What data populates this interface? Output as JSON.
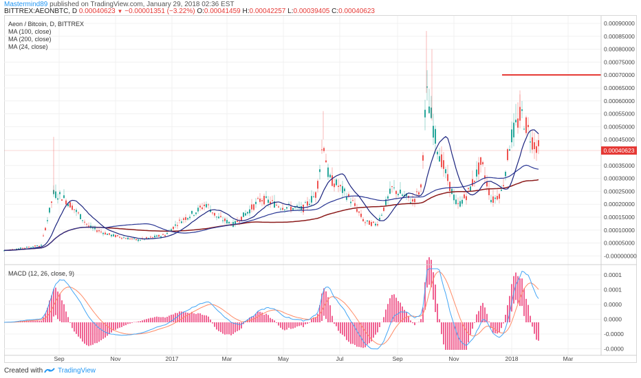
{
  "header": {
    "author": "Mastermind89",
    "published": "published on TradingView.com, January 29, 2018 02:36 EST",
    "symbol": "BITTREX:AEONBTC, D",
    "last": "0.00040623",
    "change": "−0.00001351 (−3.22%)",
    "o_label": "O:",
    "o_val": "0.00041459",
    "h_label": "H:",
    "h_val": "0.00042257",
    "l_label": "L:",
    "l_val": "0.00039405",
    "c_label": "C:",
    "c_val": "0.00040623"
  },
  "legend": {
    "title": "Aeon / Bitcoin, D, BITTREX",
    "ma100": "MA (100, close)",
    "ma200": "MA (200, close)",
    "ma24": "MA (24, close)"
  },
  "macd_label": "MACD (12, 26, close, 9)",
  "current_price_tag": "0.00040623",
  "price_axis_labels": [
    "0.00090000",
    "0.00085000",
    "0.00080000",
    "0.00075000",
    "0.00070000",
    "0.00065000",
    "0.00060000",
    "0.00055000",
    "0.00050000",
    "0.00045000",
    "0.00035000",
    "0.00030000",
    "0.00025000",
    "0.00020000",
    "0.00015000",
    "0.00010000",
    "0.00005000",
    "-0.00000000"
  ],
  "macd_axis_labels": [
    "0.0001",
    "0.0001",
    "0.0000",
    "0.0000",
    "-0.0000",
    "-0.0000"
  ],
  "time_axis_labels": [
    "Sep",
    "Nov",
    "2017",
    "Mar",
    "May",
    "Jul",
    "Sep",
    "Nov",
    "2018",
    "Mar"
  ],
  "colors": {
    "up": "#26a69a",
    "down": "#ef5350",
    "ma24": "#1a237e",
    "ma100": "#283593",
    "ma200": "#8b1a1a",
    "hline": "#e53935",
    "macd": "#42a5f5",
    "signal": "#ff8a65",
    "hist": "#f06292"
  },
  "footer": {
    "created": "Created with",
    "brand": "TradingView"
  }
}
